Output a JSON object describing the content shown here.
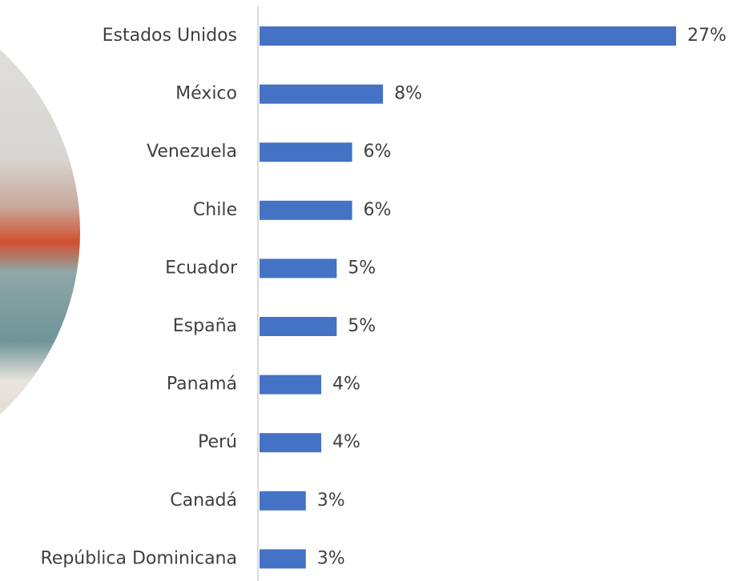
{
  "chart_data": {
    "type": "bar",
    "categories": [
      "Estados Unidos",
      "México",
      "Venezuela",
      "Chile",
      "Ecuador",
      "España",
      "Panamá",
      "Perú",
      "Canadá",
      "República Dominicana"
    ],
    "values": [
      27,
      8,
      6,
      6,
      5,
      5,
      4,
      4,
      3,
      3
    ],
    "value_labels": [
      "27%",
      "8%",
      "6%",
      "6%",
      "5%",
      "5%",
      "4%",
      "4%",
      "3%",
      "3%"
    ],
    "color": "#4472c4"
  }
}
